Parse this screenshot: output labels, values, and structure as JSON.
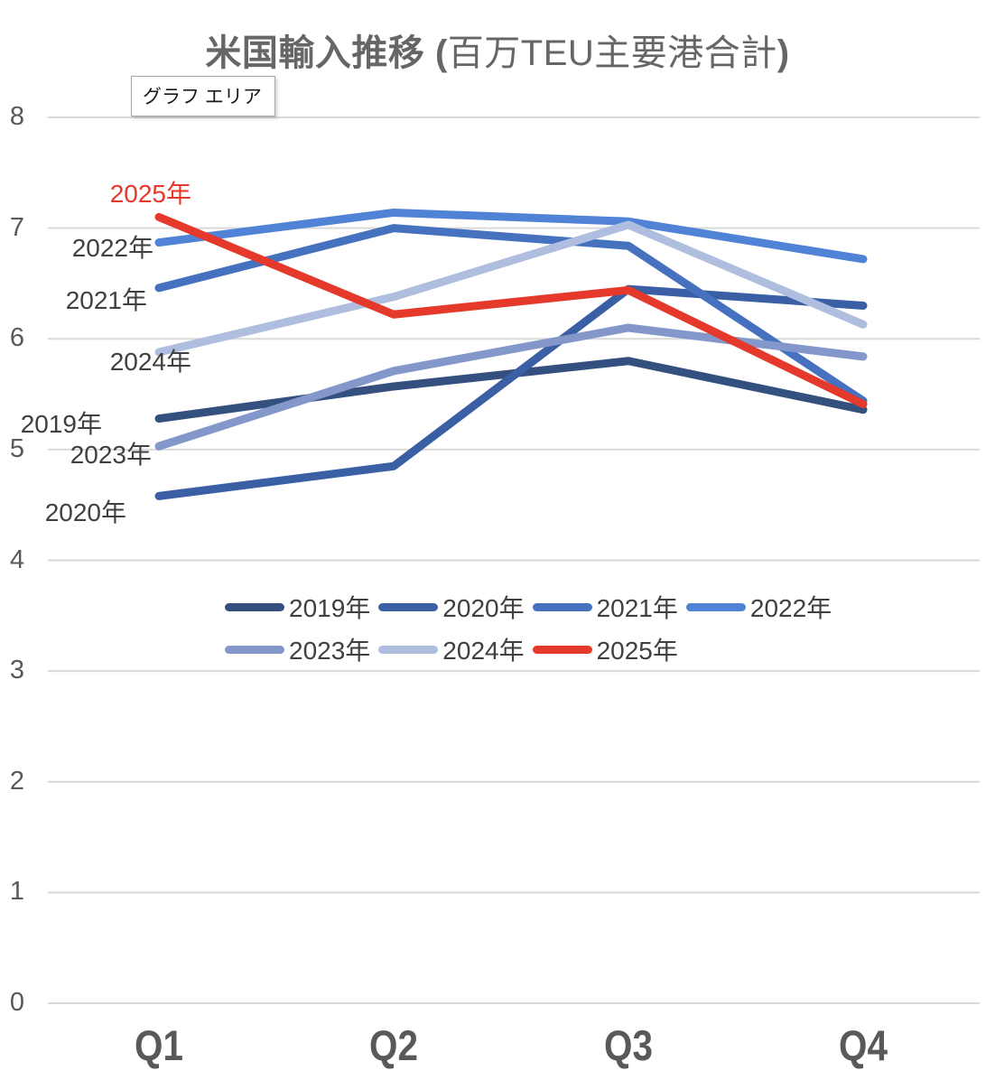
{
  "title": {
    "bold_prefix": "米国輸入推移 (",
    "regular": "百万TEU主要港合計",
    "bold_suffix": ")"
  },
  "tooltip": {
    "text": "グラフ エリア"
  },
  "y_axis": {
    "ticks": [
      "8",
      "7",
      "6",
      "5",
      "4",
      "3",
      "2",
      "1",
      "0"
    ]
  },
  "chart_data": {
    "type": "line",
    "title": "米国輸入推移 (百万TEU主要港合計)",
    "categories": [
      "Q1",
      "Q2",
      "Q3",
      "Q4"
    ],
    "series": [
      {
        "name": "2019年",
        "color": "#33507F",
        "label_color": "#404040",
        "values": [
          5.28,
          5.57,
          5.8,
          5.36
        ]
      },
      {
        "name": "2020年",
        "color": "#3B5FA4",
        "label_color": "#404040",
        "values": [
          4.58,
          4.85,
          6.45,
          6.3
        ]
      },
      {
        "name": "2021年",
        "color": "#4571BE",
        "label_color": "#404040",
        "values": [
          6.46,
          7.0,
          6.84,
          5.44
        ]
      },
      {
        "name": "2022年",
        "color": "#5082D6",
        "label_color": "#404040",
        "values": [
          6.87,
          7.14,
          7.06,
          6.72
        ]
      },
      {
        "name": "2023年",
        "color": "#8497CA",
        "label_color": "#404040",
        "values": [
          5.03,
          5.71,
          6.1,
          5.84
        ]
      },
      {
        "name": "2024年",
        "color": "#AFBEDF",
        "label_color": "#404040",
        "values": [
          5.88,
          6.38,
          7.03,
          6.13
        ]
      },
      {
        "name": "2025年",
        "color": "#E5392B",
        "label_color": "#E5392B",
        "values": [
          7.1,
          6.22,
          6.44,
          5.41
        ]
      }
    ],
    "ylim": [
      0,
      8
    ],
    "ytick_step": 1,
    "grid": true,
    "gridline_color": "#D9D9D9",
    "legend_position": "bottom-center-two-rows",
    "legend_rows": [
      [
        "2019年",
        "2020年",
        "2021年",
        "2022年"
      ],
      [
        "2023年",
        "2024年",
        "2025年"
      ]
    ],
    "series_labels_at_line_start": true
  }
}
